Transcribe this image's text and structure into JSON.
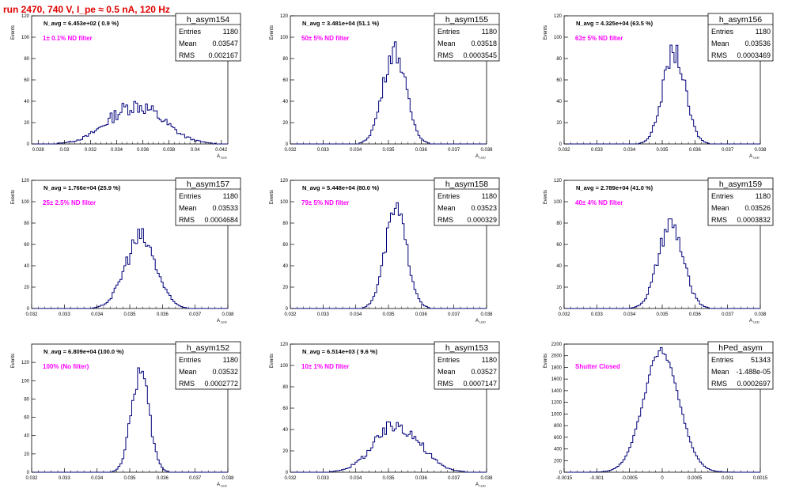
{
  "page_title": "run 2470,   740 V, I_pe ≈ 0.5 nA, 120 Hz",
  "colors": {
    "title": "#e00000",
    "annotation": "#ff00ff",
    "histogram": "#00007a",
    "axis": "#000000"
  },
  "chart_data": [
    {
      "type": "histogram",
      "name": "h_asym154",
      "stats": {
        "entries_label": "Entries",
        "entries": "1180",
        "mean_label": "Mean",
        "mean": "0.03547",
        "rms_label": "RMS",
        "rms": "0.002167"
      },
      "header_text": "N_avg = 6.453e+02 ( 0.9 %)",
      "annotation": "1± 0.1% ND filter",
      "ylabel": "Events",
      "xlabel": "A_LED",
      "xlim": [
        0.0275,
        0.0425
      ],
      "ylim": [
        0,
        120
      ],
      "xticks": [
        "0.028",
        "0.03",
        "0.032",
        "0.034",
        "0.036",
        "0.038",
        "0.04",
        "0.042"
      ],
      "yticks": [
        "0",
        "20",
        "40",
        "60",
        "80",
        "100",
        "120"
      ],
      "mean": 0.03547,
      "sigma": 0.0021,
      "peak": 36,
      "noise": 0.22
    },
    {
      "type": "histogram",
      "name": "h_asym155",
      "stats": {
        "entries_label": "Entries",
        "entries": "1180",
        "mean_label": "Mean",
        "mean": "0.03518",
        "rms_label": "RMS",
        "rms": "0.0003545"
      },
      "header_text": "N_avg = 3.481e+04 (51.1 %)",
      "annotation": "50± 5% ND filter",
      "ylabel": "Events",
      "xlabel": "A_LED",
      "xlim": [
        0.032,
        0.038
      ],
      "ylim": [
        0,
        120
      ],
      "xticks": [
        "0.032",
        "0.033",
        "0.034",
        "0.035",
        "0.036",
        "0.037",
        "0.038"
      ],
      "yticks": [
        "0",
        "20",
        "40",
        "60",
        "80",
        "100",
        "120"
      ],
      "mean": 0.03518,
      "sigma": 0.00035,
      "peak": 88,
      "noise": 0.12
    },
    {
      "type": "histogram",
      "name": "h_asym156",
      "stats": {
        "entries_label": "Entries",
        "entries": "1180",
        "mean_label": "Mean",
        "mean": "0.03536",
        "rms_label": "RMS",
        "rms": "0.0003469"
      },
      "header_text": "N_avg = 4.325e+04 (63.5 %)",
      "annotation": "63± 5% ND filter",
      "ylabel": "Events",
      "xlabel": "A_LED",
      "xlim": [
        0.032,
        0.038
      ],
      "ylim": [
        0,
        120
      ],
      "xticks": [
        "0.032",
        "0.033",
        "0.034",
        "0.035",
        "0.036",
        "0.037",
        "0.038"
      ],
      "yticks": [
        "0",
        "20",
        "40",
        "60",
        "80",
        "100",
        "120"
      ],
      "mean": 0.03536,
      "sigma": 0.00034,
      "peak": 86,
      "noise": 0.12
    },
    {
      "type": "histogram",
      "name": "h_asym157",
      "stats": {
        "entries_label": "Entries",
        "entries": "1180",
        "mean_label": "Mean",
        "mean": "0.03533",
        "rms_label": "RMS",
        "rms": "0.0004684"
      },
      "header_text": "N_avg = 1.766e+04 (25.9 %)",
      "annotation": "25± 2.5% ND filter",
      "ylabel": "Events",
      "xlabel": "A_LED",
      "xlim": [
        0.032,
        0.038
      ],
      "ylim": [
        0,
        120
      ],
      "xticks": [
        "0.032",
        "0.033",
        "0.034",
        "0.035",
        "0.036",
        "0.037",
        "0.038"
      ],
      "yticks": [
        "0",
        "20",
        "40",
        "60",
        "80",
        "100",
        "120"
      ],
      "mean": 0.03533,
      "sigma": 0.00047,
      "peak": 66,
      "noise": 0.16
    },
    {
      "type": "histogram",
      "name": "h_asym158",
      "stats": {
        "entries_label": "Entries",
        "entries": "1180",
        "mean_label": "Mean",
        "mean": "0.03523",
        "rms_label": "RMS",
        "rms": "0.000329"
      },
      "header_text": "N_avg = 5.448e+04 (80.0 %)",
      "annotation": "79± 5% ND filter",
      "ylabel": "Events",
      "xlabel": "A_LED",
      "xlim": [
        0.032,
        0.038
      ],
      "ylim": [
        0,
        120
      ],
      "xticks": [
        "0.032",
        "0.033",
        "0.034",
        "0.035",
        "0.036",
        "0.037",
        "0.038"
      ],
      "yticks": [
        "0",
        "20",
        "40",
        "60",
        "80",
        "100",
        "120"
      ],
      "mean": 0.03523,
      "sigma": 0.00033,
      "peak": 92,
      "noise": 0.12
    },
    {
      "type": "histogram",
      "name": "h_asym159",
      "stats": {
        "entries_label": "Entries",
        "entries": "1180",
        "mean_label": "Mean",
        "mean": "0.03526",
        "rms_label": "RMS",
        "rms": "0.0003832"
      },
      "header_text": "N_avg = 2.789e+04 (41.0 %)",
      "annotation": "40± 4% ND filter",
      "ylabel": "Events",
      "xlabel": "A_LED",
      "xlim": [
        0.032,
        0.038
      ],
      "ylim": [
        0,
        120
      ],
      "xticks": [
        "0.032",
        "0.033",
        "0.034",
        "0.035",
        "0.036",
        "0.037",
        "0.038"
      ],
      "yticks": [
        "0",
        "20",
        "40",
        "60",
        "80",
        "100",
        "120"
      ],
      "mean": 0.03526,
      "sigma": 0.00038,
      "peak": 78,
      "noise": 0.13
    },
    {
      "type": "histogram",
      "name": "h_asym152",
      "stats": {
        "entries_label": "Entries",
        "entries": "1180",
        "mean_label": "Mean",
        "mean": "0.03532",
        "rms_label": "RMS",
        "rms": "0.0002772"
      },
      "header_text": "N_avg = 6.809e+04 (100.0 %)",
      "annotation": "100% (No filter)",
      "ylabel": "Events",
      "xlabel": "A_LED",
      "xlim": [
        0.032,
        0.038
      ],
      "ylim": [
        0,
        140
      ],
      "xticks": [
        "0.032",
        "0.033",
        "0.034",
        "0.035",
        "0.036",
        "0.037",
        "0.038"
      ],
      "yticks": [
        "0",
        "20",
        "40",
        "60",
        "80",
        "100",
        "120"
      ],
      "mean": 0.03532,
      "sigma": 0.00027,
      "peak": 110,
      "noise": 0.12
    },
    {
      "type": "histogram",
      "name": "h_asym153",
      "stats": {
        "entries_label": "Entries",
        "entries": "1180",
        "mean_label": "Mean",
        "mean": "0.03527",
        "rms_label": "RMS",
        "rms": "0.0007147"
      },
      "header_text": "N_avg = 6.514e+03 ( 9.6 %)",
      "annotation": "10± 1% ND filter",
      "ylabel": "Events",
      "xlabel": "A_LED",
      "xlim": [
        0.032,
        0.038
      ],
      "ylim": [
        0,
        120
      ],
      "xticks": [
        "0.032",
        "0.033",
        "0.034",
        "0.035",
        "0.036",
        "0.037",
        "0.038"
      ],
      "yticks": [
        "0",
        "20",
        "40",
        "60",
        "80",
        "100",
        "120"
      ],
      "mean": 0.03527,
      "sigma": 0.0007,
      "peak": 44,
      "noise": 0.18
    },
    {
      "type": "histogram",
      "name": "hPed_asym",
      "stats": {
        "entries_label": "Entries",
        "entries": "51343",
        "mean_label": "Mean",
        "mean": "-1.488e-05",
        "rms_label": "RMS",
        "rms": "0.0002697"
      },
      "header_text": "",
      "annotation": "Shutter Closed",
      "ylabel": "Events",
      "xlabel": "",
      "xlim": [
        -0.0015,
        0.0015
      ],
      "ylim": [
        0,
        2200
      ],
      "xticks": [
        "-0.0015",
        "-0.001",
        "-0.0005",
        "0",
        "0.0005",
        "0.001",
        "0.0015"
      ],
      "yticks": [
        "0",
        "200",
        "400",
        "600",
        "800",
        "1000",
        "1200",
        "1400",
        "1600",
        "1800",
        "2000",
        "2200"
      ],
      "mean": -1.488e-05,
      "sigma": 0.00027,
      "peak": 2080,
      "noise": 0.03
    }
  ]
}
